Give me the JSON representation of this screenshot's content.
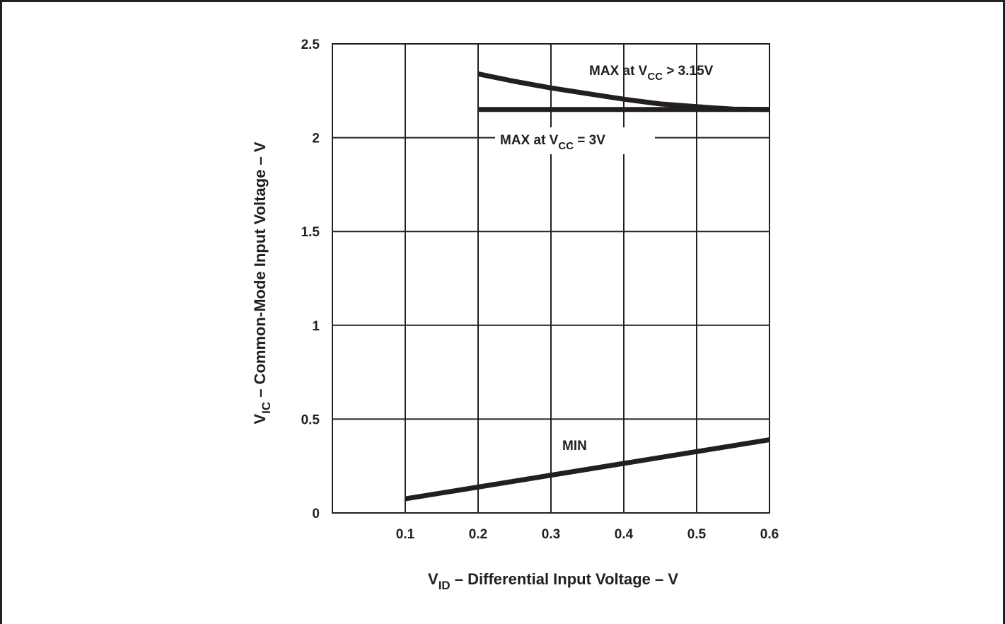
{
  "chart_data": {
    "type": "line",
    "x_ticks": [
      "0.1",
      "0.2",
      "0.3",
      "0.4",
      "0.5",
      "0.6"
    ],
    "y_ticks": [
      "0",
      "0.5",
      "1",
      "1.5",
      "2",
      "2.5"
    ],
    "xlim": [
      0,
      0.6
    ],
    "ylim": [
      0,
      2.5
    ],
    "grid": true,
    "xlabel": {
      "sym": "V",
      "sub": "ID",
      "text": " – Differential Input Voltage – V"
    },
    "ylabel": {
      "sym": "V",
      "sub": "IC",
      "text": " – Common-Mode Input Voltage – V"
    },
    "series": [
      {
        "name": "MAX at VCC > 3.15V",
        "x": [
          0.2,
          0.25,
          0.3,
          0.35,
          0.4,
          0.45,
          0.5,
          0.55,
          0.6
        ],
        "y": [
          2.34,
          2.3,
          2.265,
          2.235,
          2.205,
          2.18,
          2.165,
          2.152,
          2.15
        ]
      },
      {
        "name": "MAX at VCC = 3V",
        "x": [
          0.2,
          0.6
        ],
        "y": [
          2.15,
          2.15
        ]
      },
      {
        "name": "MIN",
        "x": [
          0.1,
          0.6
        ],
        "y": [
          0.075,
          0.39
        ]
      }
    ],
    "annotations": [
      {
        "pre": "MAX at V",
        "sub": "CC",
        "post": " > 3.15V"
      },
      {
        "pre": "MAX at V",
        "sub": "CC",
        "post": " = 3V"
      },
      {
        "text": "MIN"
      }
    ]
  }
}
